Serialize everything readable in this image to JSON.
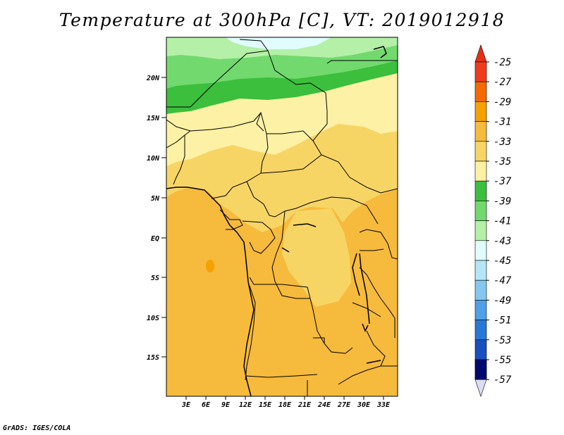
{
  "title": "Temperature at 300hPa [C], VT: 2019012918",
  "credit": "GrADS: IGES/COLA",
  "map": {
    "lat_labels": [
      "20N",
      "15N",
      "10N",
      "5N",
      "EQ",
      "5S",
      "10S",
      "15S"
    ],
    "lon_labels": [
      "3E",
      "6E",
      "9E",
      "12E",
      "15E",
      "18E",
      "21E",
      "24E",
      "27E",
      "30E",
      "33E"
    ],
    "regions": [
      {
        "name": "north-cold-band",
        "value": -41
      },
      {
        "name": "sahel-cool-band",
        "value": -37
      },
      {
        "name": "sahel-band",
        "value": -35
      },
      {
        "name": "central-band",
        "value": -33
      },
      {
        "name": "southern-band",
        "value": -31
      },
      {
        "name": "warm-patches",
        "value": -29
      }
    ]
  },
  "colorbar": {
    "labels": [
      "-25",
      "-27",
      "-29",
      "-31",
      "-33",
      "-35",
      "-37",
      "-39",
      "-41",
      "-43",
      "-45",
      "-47",
      "-49",
      "-51",
      "-53",
      "-55",
      "-57"
    ],
    "colors": [
      "#f03c1e",
      "#f56a00",
      "#f7a100",
      "#f6ba3c",
      "#f7d565",
      "#fdf1a5",
      "#3cbf3c",
      "#72d96e",
      "#b4f0a8",
      "#e0fcfc",
      "#b4e6f7",
      "#84c8f0",
      "#50a0e6",
      "#2878d7",
      "#1950c0",
      "#0d32aa",
      "#000a6e"
    ],
    "upper_triangle": "#e63014",
    "lower_triangle": "#dcdcf5"
  }
}
